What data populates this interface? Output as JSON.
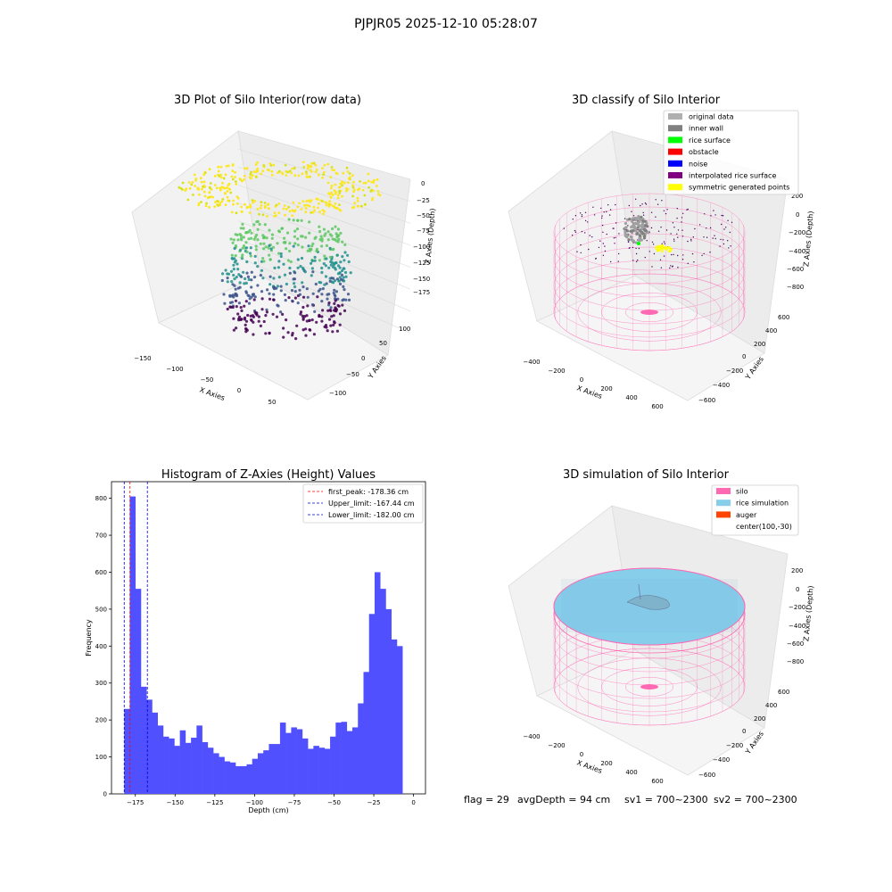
{
  "suptitle": "PJPJR05 2025-12-10 05:28:07",
  "panels": {
    "raw": {
      "title": "3D Plot of Silo Interior(row data)",
      "xlabel": "X Axies",
      "ylabel": "Y Axies",
      "zlabel": "Z Axies (Depth)",
      "x_ticks": [
        "−150",
        "−100",
        "−50",
        "0",
        "50"
      ],
      "y_ticks": [
        "100",
        "50",
        "0",
        "−50",
        "−100"
      ],
      "z_ticks": [
        "0",
        "−25",
        "−50",
        "−75",
        "−100",
        "−125",
        "−150",
        "−175"
      ]
    },
    "classify": {
      "title": "3D classify of Silo Interior",
      "xlabel": "X Axies",
      "ylabel": "Y Axies",
      "zlabel": "Z Axies (Depth)",
      "x_ticks": [
        "−400",
        "−200",
        "0",
        "200",
        "400",
        "600"
      ],
      "y_ticks": [
        "600",
        "400",
        "200",
        "0",
        "−200",
        "−400",
        "−600"
      ],
      "z_ticks": [
        "200",
        "0",
        "−200",
        "−400",
        "−600",
        "−800"
      ],
      "legend": [
        {
          "label": "original data",
          "color": "#b0b0b0"
        },
        {
          "label": "inner wall",
          "color": "#808080"
        },
        {
          "label": "rice surface",
          "color": "#00ff00"
        },
        {
          "label": "obstacle",
          "color": "#ff0000"
        },
        {
          "label": "noise",
          "color": "#0000ff"
        },
        {
          "label": "interpolated rice surface",
          "color": "#800080"
        },
        {
          "label": "symmetric generated points",
          "color": "#ffff00"
        }
      ]
    },
    "simulation": {
      "title": "3D simulation of Silo Interior",
      "xlabel": "X Axies",
      "ylabel": "Y Axies",
      "zlabel": "Z Axies (Depth)",
      "x_ticks": [
        "−400",
        "−200",
        "0",
        "200",
        "400",
        "600"
      ],
      "y_ticks": [
        "600",
        "400",
        "200",
        "0",
        "−200",
        "−400",
        "−600"
      ],
      "z_ticks": [
        "200",
        "0",
        "−200",
        "−400",
        "−600",
        "−800"
      ],
      "legend": [
        {
          "label": "silo",
          "color": "#ff69b4"
        },
        {
          "label": "rice simulation",
          "color": "#87ceeb"
        },
        {
          "label": "auger",
          "color": "#ff4500"
        },
        {
          "label": "center(100,-30)",
          "color": ""
        }
      ],
      "status": {
        "flag": "flag = 29",
        "avg": "avgDepth = 94 cm",
        "sv1": "sv1 = 700~2300",
        "sv2": "sv2 = 700~2300"
      }
    }
  },
  "chart_data": [
    {
      "type": "bar",
      "title": "Histogram of Z-Axies (Height) Values",
      "xlabel": "Depth (cm)",
      "ylabel": "Frequency",
      "xlim": [
        -190,
        7.5
      ],
      "ylim": [
        0,
        845
      ],
      "bin_width": 3.5,
      "bin_start": -182.0,
      "bar_color": "#5050ff",
      "values": [
        230,
        805,
        555,
        290,
        255,
        220,
        185,
        155,
        150,
        130,
        172,
        138,
        152,
        185,
        140,
        125,
        110,
        100,
        88,
        85,
        75,
        75,
        80,
        95,
        110,
        118,
        135,
        135,
        193,
        165,
        180,
        175,
        150,
        122,
        130,
        125,
        122,
        155,
        193,
        195,
        170,
        180,
        245,
        330,
        487,
        600,
        555,
        500,
        418,
        400
      ],
      "x_ticks": [
        -175,
        -150,
        -125,
        -100,
        -75,
        -50,
        -25,
        0
      ],
      "x_tick_labels": [
        "−175",
        "−150",
        "−125",
        "−100",
        "−75",
        "−50",
        "−25",
        "0"
      ],
      "y_ticks": [
        0,
        100,
        200,
        300,
        400,
        500,
        600,
        700,
        800
      ],
      "lines": [
        {
          "name": "first_peak: -178.36 cm",
          "x": -178.36,
          "color": "#ff0000"
        },
        {
          "name": "Upper_limit: -167.44 cm",
          "x": -167.44,
          "color": "#0000cc"
        },
        {
          "name": "Lower_limit: -182.00 cm",
          "x": -182.0,
          "color": "#0000cc"
        }
      ],
      "legend_position": "upper right"
    }
  ]
}
